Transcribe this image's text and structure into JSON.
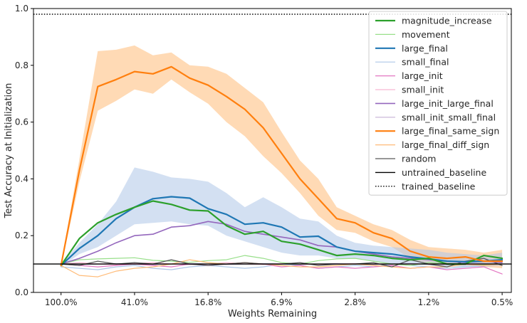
{
  "chart_data": {
    "type": "line",
    "title": "",
    "xlabel": "Weights Remaining",
    "ylabel": "Test Accuracy at Initialization",
    "ylim": [
      0.0,
      1.0
    ],
    "y_ticks": [
      "0.0",
      "0.2",
      "0.4",
      "0.6",
      "0.8",
      "1.0"
    ],
    "x_ticks": [
      "100.0%",
      "41.0%",
      "16.8%",
      "6.9%",
      "2.8%",
      "1.2%",
      "0.5%"
    ],
    "x_scale": "log (fraction of weights remaining, prune steps of 20%)",
    "x_positions": [
      0,
      1,
      2,
      3,
      4,
      5,
      6,
      7,
      8,
      9,
      10,
      11,
      12,
      13,
      14,
      15,
      16,
      17,
      18,
      19,
      20,
      21,
      22,
      23,
      24,
      25,
      26,
      27
    ],
    "x_tick_positions": [
      0,
      4,
      8,
      12,
      16,
      20,
      24
    ],
    "grid": false,
    "legend_location": "upper right",
    "series": [
      {
        "name": "magnitude_increase",
        "color": "#2ca02c",
        "style": "solid",
        "width": 2.2,
        "values": [
          0.095,
          0.19,
          0.245,
          0.275,
          0.3,
          0.322,
          0.31,
          0.29,
          0.287,
          0.235,
          0.205,
          0.215,
          0.18,
          0.17,
          0.15,
          0.13,
          0.135,
          0.13,
          0.12,
          0.115,
          0.12,
          0.1,
          0.1,
          0.13,
          0.12
        ]
      },
      {
        "name": "movement",
        "color": "#98df8a",
        "style": "solid",
        "width": 1.2,
        "values": [
          0.1,
          0.115,
          0.118,
          0.12,
          0.122,
          0.113,
          0.11,
          0.106,
          0.112,
          0.115,
          0.13,
          0.12,
          0.105,
          0.1,
          0.112,
          0.118,
          0.12,
          0.11,
          0.1,
          0.095,
          0.105,
          0.1,
          0.1,
          0.098,
          0.1
        ]
      },
      {
        "name": "large_final",
        "color": "#1f77b4",
        "style": "solid",
        "width": 2.2,
        "values": [
          0.095,
          0.155,
          0.2,
          0.26,
          0.3,
          0.33,
          0.337,
          0.332,
          0.295,
          0.275,
          0.24,
          0.245,
          0.23,
          0.195,
          0.198,
          0.16,
          0.145,
          0.14,
          0.135,
          0.125,
          0.118,
          0.11,
          0.108,
          0.11,
          0.115
        ]
      },
      {
        "name": "small_final",
        "color": "#aec7e8",
        "style": "solid",
        "width": 1.2,
        "values": [
          0.09,
          0.085,
          0.08,
          0.09,
          0.095,
          0.085,
          0.08,
          0.09,
          0.095,
          0.09,
          0.085,
          0.09,
          0.1,
          0.095,
          0.085,
          0.09,
          0.095,
          0.09,
          0.1,
          0.095,
          0.09,
          0.085,
          0.09,
          0.095,
          0.1
        ]
      },
      {
        "name": "large_init",
        "color": "#e377c2",
        "style": "solid",
        "width": 1.2,
        "values": [
          0.1,
          0.095,
          0.09,
          0.095,
          0.1,
          0.095,
          0.09,
          0.1,
          0.095,
          0.1,
          0.105,
          0.1,
          0.09,
          0.095,
          0.085,
          0.09,
          0.085,
          0.09,
          0.095,
          0.085,
          0.09,
          0.08,
          0.085,
          0.09,
          0.065
        ]
      },
      {
        "name": "small_init",
        "color": "#f7b6d2",
        "style": "solid",
        "width": 1.2,
        "values": [
          0.1,
          0.105,
          0.1,
          0.098,
          0.102,
          0.105,
          0.1,
          0.098,
          0.1,
          0.105,
          0.1,
          0.098,
          0.102,
          0.1,
          0.098,
          0.1,
          0.102,
          0.1,
          0.098,
          0.1,
          0.102,
          0.1,
          0.098,
          0.1,
          0.1
        ]
      },
      {
        "name": "large_init_large_final",
        "color": "#9467bd",
        "style": "solid",
        "width": 1.6,
        "values": [
          0.1,
          0.12,
          0.145,
          0.175,
          0.2,
          0.205,
          0.23,
          0.235,
          0.25,
          0.24,
          0.215,
          0.205,
          0.195,
          0.185,
          0.165,
          0.16,
          0.145,
          0.135,
          0.125,
          0.12,
          0.115,
          0.11,
          0.105,
          0.11,
          0.105
        ]
      },
      {
        "name": "small_init_small_final",
        "color": "#c5b0d5",
        "style": "solid",
        "width": 1.2,
        "values": [
          0.1,
          0.098,
          0.1,
          0.102,
          0.1,
          0.098,
          0.1,
          0.102,
          0.1,
          0.098,
          0.1,
          0.102,
          0.1,
          0.098,
          0.1,
          0.102,
          0.1,
          0.098,
          0.1,
          0.102,
          0.1,
          0.098,
          0.1,
          0.102,
          0.1
        ]
      },
      {
        "name": "large_final_same_sign",
        "color": "#ff7f0e",
        "style": "solid",
        "width": 2.2,
        "values": [
          0.095,
          0.43,
          0.725,
          0.75,
          0.778,
          0.77,
          0.795,
          0.755,
          0.73,
          0.69,
          0.645,
          0.58,
          0.49,
          0.4,
          0.33,
          0.26,
          0.245,
          0.21,
          0.19,
          0.145,
          0.125,
          0.12,
          0.125,
          0.11,
          0.11
        ]
      },
      {
        "name": "large_final_diff_sign",
        "color": "#ffbb78",
        "style": "solid",
        "width": 1.2,
        "values": [
          0.095,
          0.06,
          0.055,
          0.075,
          0.085,
          0.09,
          0.1,
          0.115,
          0.105,
          0.1,
          0.105,
          0.1,
          0.095,
          0.09,
          0.09,
          0.095,
          0.1,
          0.095,
          0.09,
          0.085,
          0.09,
          0.09,
          0.1,
          0.095,
          0.1
        ]
      },
      {
        "name": "random",
        "color": "#595959",
        "style": "solid",
        "width": 1.3,
        "values": [
          0.1,
          0.095,
          0.11,
          0.1,
          0.105,
          0.1,
          0.115,
          0.1,
          0.095,
          0.1,
          0.105,
          0.1,
          0.1,
          0.105,
          0.095,
          0.1,
          0.1,
          0.105,
          0.09,
          0.115,
          0.1,
          0.09,
          0.11,
          0.12,
          0.095
        ]
      },
      {
        "name": "untrained_baseline",
        "color": "#000000",
        "style": "solid",
        "width": 1.4,
        "values": [
          0.1,
          0.1,
          0.1,
          0.1,
          0.1,
          0.1,
          0.1,
          0.1,
          0.1,
          0.1,
          0.1,
          0.1,
          0.1,
          0.1,
          0.1,
          0.1,
          0.1,
          0.1,
          0.1,
          0.1,
          0.1,
          0.1,
          0.1,
          0.1,
          0.1,
          0.1,
          0.1,
          0.1
        ]
      },
      {
        "name": "trained_baseline",
        "color": "#000000",
        "style": "dotted",
        "width": 1.4,
        "values": [
          0.98,
          0.98,
          0.98,
          0.98,
          0.98,
          0.98,
          0.98,
          0.98,
          0.98,
          0.98,
          0.98,
          0.98,
          0.98,
          0.98,
          0.98,
          0.98,
          0.98,
          0.98,
          0.98,
          0.98,
          0.98,
          0.98,
          0.98,
          0.98,
          0.98,
          0.98,
          0.98,
          0.98
        ]
      }
    ],
    "bands": [
      {
        "series": "large_final_same_sign",
        "color": "#ffbb78",
        "opacity": 0.55,
        "upper": [
          0.1,
          0.47,
          0.85,
          0.855,
          0.87,
          0.835,
          0.845,
          0.8,
          0.795,
          0.77,
          0.72,
          0.67,
          0.565,
          0.465,
          0.4,
          0.3,
          0.27,
          0.24,
          0.22,
          0.185,
          0.16,
          0.155,
          0.15,
          0.14,
          0.15
        ],
        "lower": [
          0.09,
          0.39,
          0.64,
          0.675,
          0.715,
          0.7,
          0.75,
          0.705,
          0.665,
          0.6,
          0.55,
          0.48,
          0.42,
          0.35,
          0.27,
          0.22,
          0.21,
          0.18,
          0.16,
          0.12,
          0.095,
          0.095,
          0.095,
          0.09,
          0.085
        ]
      },
      {
        "series": "large_final",
        "color": "#aec7e8",
        "opacity": 0.55,
        "upper": [
          0.1,
          0.175,
          0.24,
          0.32,
          0.44,
          0.425,
          0.405,
          0.4,
          0.39,
          0.35,
          0.3,
          0.335,
          0.3,
          0.26,
          0.25,
          0.2,
          0.175,
          0.165,
          0.16,
          0.155,
          0.15,
          0.14,
          0.135,
          0.13,
          0.14
        ]
      },
      {
        "series": "large_final",
        "color": "#aec7e8",
        "opacity": 0.55,
        "lower": [
          0.09,
          0.135,
          0.16,
          0.2,
          0.24,
          0.245,
          0.25,
          0.24,
          0.235,
          0.2,
          0.18,
          0.16,
          0.14,
          0.13,
          0.13,
          0.12,
          0.12,
          0.11,
          0.1,
          0.1,
          0.095,
          0.09,
          0.09,
          0.09,
          0.095
        ]
      }
    ],
    "legend": [
      "magnitude_increase",
      "movement",
      "large_final",
      "small_final",
      "large_init",
      "small_init",
      "large_init_large_final",
      "small_init_small_final",
      "large_final_same_sign",
      "large_final_diff_sign",
      "random",
      "untrained_baseline",
      "trained_baseline"
    ]
  }
}
